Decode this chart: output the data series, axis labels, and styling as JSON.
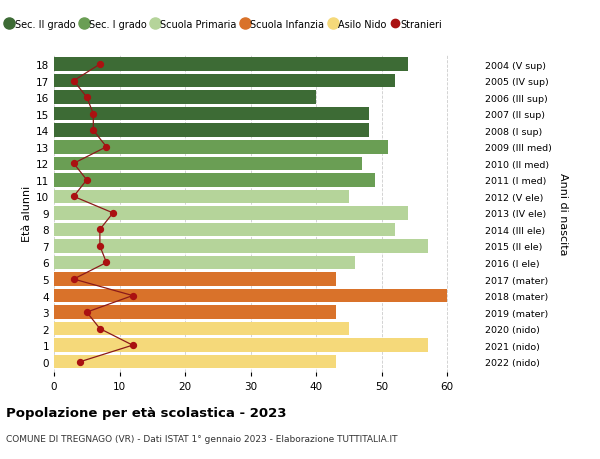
{
  "ages": [
    18,
    17,
    16,
    15,
    14,
    13,
    12,
    11,
    10,
    9,
    8,
    7,
    6,
    5,
    4,
    3,
    2,
    1,
    0
  ],
  "right_labels": [
    "2004 (V sup)",
    "2005 (IV sup)",
    "2006 (III sup)",
    "2007 (II sup)",
    "2008 (I sup)",
    "2009 (III med)",
    "2010 (II med)",
    "2011 (I med)",
    "2012 (V ele)",
    "2013 (IV ele)",
    "2014 (III ele)",
    "2015 (II ele)",
    "2016 (I ele)",
    "2017 (mater)",
    "2018 (mater)",
    "2019 (mater)",
    "2020 (nido)",
    "2021 (nido)",
    "2022 (nido)"
  ],
  "bar_values": [
    54,
    52,
    40,
    48,
    48,
    51,
    47,
    49,
    45,
    54,
    52,
    57,
    46,
    43,
    60,
    43,
    45,
    57,
    43
  ],
  "bar_colors": [
    "#3d6b35",
    "#3d6b35",
    "#3d6b35",
    "#3d6b35",
    "#3d6b35",
    "#6a9e54",
    "#6a9e54",
    "#6a9e54",
    "#b5d49a",
    "#b5d49a",
    "#b5d49a",
    "#b5d49a",
    "#b5d49a",
    "#d9722a",
    "#d9722a",
    "#d9722a",
    "#f5d97a",
    "#f5d97a",
    "#f5d97a"
  ],
  "stranieri_values": [
    7,
    3,
    5,
    6,
    6,
    8,
    3,
    5,
    3,
    9,
    7,
    7,
    8,
    3,
    12,
    5,
    7,
    12,
    4
  ],
  "stranieri_color": "#aa1111",
  "stranieri_line_color": "#8b1a1a",
  "ylabel": "Età alunni",
  "right_ylabel": "Anni di nascita",
  "title": "Popolazione per età scolastica - 2023",
  "subtitle": "COMUNE DI TREGNAGO (VR) - Dati ISTAT 1° gennaio 2023 - Elaborazione TUTTITALIA.IT",
  "xlim": [
    0,
    65
  ],
  "xticks": [
    0,
    10,
    20,
    30,
    40,
    50,
    60
  ],
  "legend_labels": [
    "Sec. II grado",
    "Sec. I grado",
    "Scuola Primaria",
    "Scuola Infanzia",
    "Asilo Nido",
    "Stranieri"
  ],
  "legend_colors": [
    "#3d6b35",
    "#6a9e54",
    "#b5d49a",
    "#d9722a",
    "#f5d97a",
    "#aa1111"
  ],
  "bg_color": "#ffffff",
  "bar_height": 0.82,
  "grid_color": "#cccccc"
}
